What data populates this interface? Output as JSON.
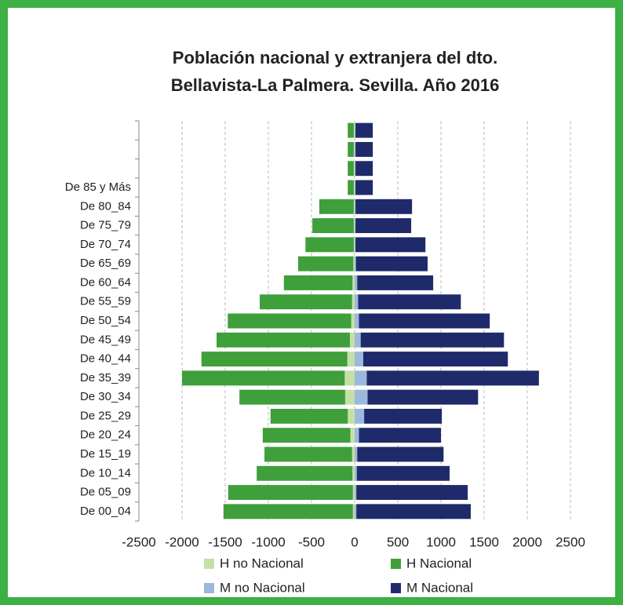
{
  "chart_data": {
    "type": "bar",
    "title": [
      "Población nacional y extranjera del dto.",
      "Bellavista-La Palmera. Sevilla. Año 2016"
    ],
    "categories": [
      null,
      null,
      null,
      "De 85 y Más",
      "De 80_84",
      "De 75_79",
      "De 70_74",
      "De 65_69",
      "De 60_64",
      "De 55_59",
      "De 50_54",
      "De 45_49",
      "De 40_44",
      "De 35_39",
      "De 30_34",
      "De 25_29",
      "De 20_24",
      "De 15_19",
      "De 10_14",
      "De 05_09",
      "De 00_04"
    ],
    "series": [
      {
        "name": "H no Nacional",
        "color": "#c5e0a5",
        "values": [
          -10,
          -10,
          -10,
          -10,
          -10,
          -10,
          -10,
          -15,
          -25,
          -30,
          -40,
          -55,
          -85,
          -115,
          -110,
          -80,
          -50,
          -30,
          -25,
          -20,
          -20
        ]
      },
      {
        "name": "H Nacional",
        "color": "#3f9f3a",
        "values": [
          -70,
          -70,
          -70,
          -70,
          -400,
          -480,
          -560,
          -640,
          -795,
          -1070,
          -1430,
          -1545,
          -1690,
          -1885,
          -1225,
          -895,
          -1015,
          -1015,
          -1110,
          -1445,
          -1500
        ]
      },
      {
        "name": "M no Nacional",
        "color": "#9bb8de",
        "values": [
          10,
          10,
          10,
          10,
          10,
          10,
          10,
          15,
          30,
          40,
          50,
          70,
          100,
          140,
          150,
          110,
          50,
          30,
          25,
          20,
          20
        ]
      },
      {
        "name": "M Nacional",
        "color": "#1f2a6b",
        "values": [
          200,
          200,
          200,
          200,
          655,
          645,
          810,
          830,
          880,
          1190,
          1515,
          1660,
          1675,
          1995,
          1280,
          900,
          950,
          1000,
          1075,
          1290,
          1325
        ]
      }
    ],
    "xlim": [
      -2500,
      2500
    ],
    "xticks": [
      -2500,
      -2000,
      -1500,
      -1000,
      -500,
      0,
      500,
      1000,
      1500,
      2000,
      2500
    ],
    "grid": true,
    "legend": "bottom"
  }
}
